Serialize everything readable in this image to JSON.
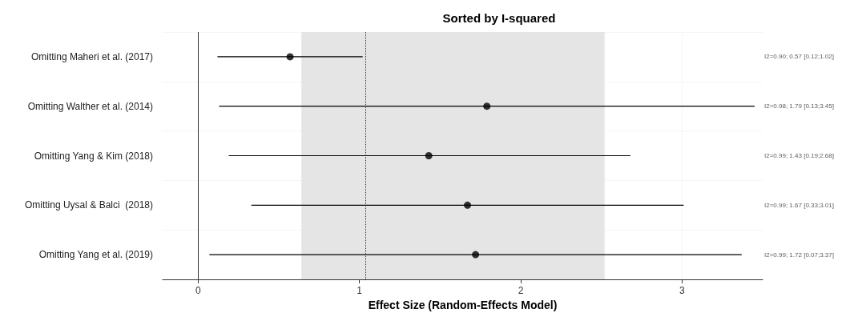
{
  "chart_data": {
    "type": "scatter",
    "orientation": "horizontal",
    "title": "Sorted by I-squared",
    "xlabel": "Effect Size (Random-Effects Model)",
    "categories": [
      "Omitting Maheri et al. (2017)",
      "Omitting Walther et al. (2014)",
      "Omitting Yang & Kim (2018)",
      "Omitting Uysal & Balci  (2018)",
      "Omitting Yang et al. (2019)"
    ],
    "values": [
      0.57,
      1.79,
      1.43,
      1.67,
      1.72
    ],
    "errors": [
      [
        0.12,
        1.02
      ],
      [
        0.13,
        3.45
      ],
      [
        0.19,
        2.68
      ],
      [
        0.33,
        3.01
      ],
      [
        0.07,
        3.37
      ]
    ],
    "value_labels": [
      "I2=0.90; 0.57 [0.12;1.02]",
      "I2=0.98; 1.79 [0.13;3.45]",
      "I2=0.99; 1.43 [0.19;2.68]",
      "I2=0.99; 1.67 [0.33;3.01]",
      "I2=0.99; 1.72 [0.07;3.37]"
    ],
    "color": "#000000",
    "marker": "circle",
    "xlim": [
      -0.22,
      3.5
    ],
    "xticks": [
      0,
      1,
      2,
      3
    ],
    "ref_lines": [
      {
        "axis": "x",
        "value": 0,
        "line_style": "solid",
        "color": "#333333"
      },
      {
        "axis": "x",
        "value": 1.04,
        "line_style": "dotted",
        "color": "#333333"
      }
    ],
    "bands": [
      {
        "axis": "x",
        "from": 0.64,
        "to": 2.52,
        "color": "#e5e5e5"
      }
    ],
    "grid": true
  }
}
